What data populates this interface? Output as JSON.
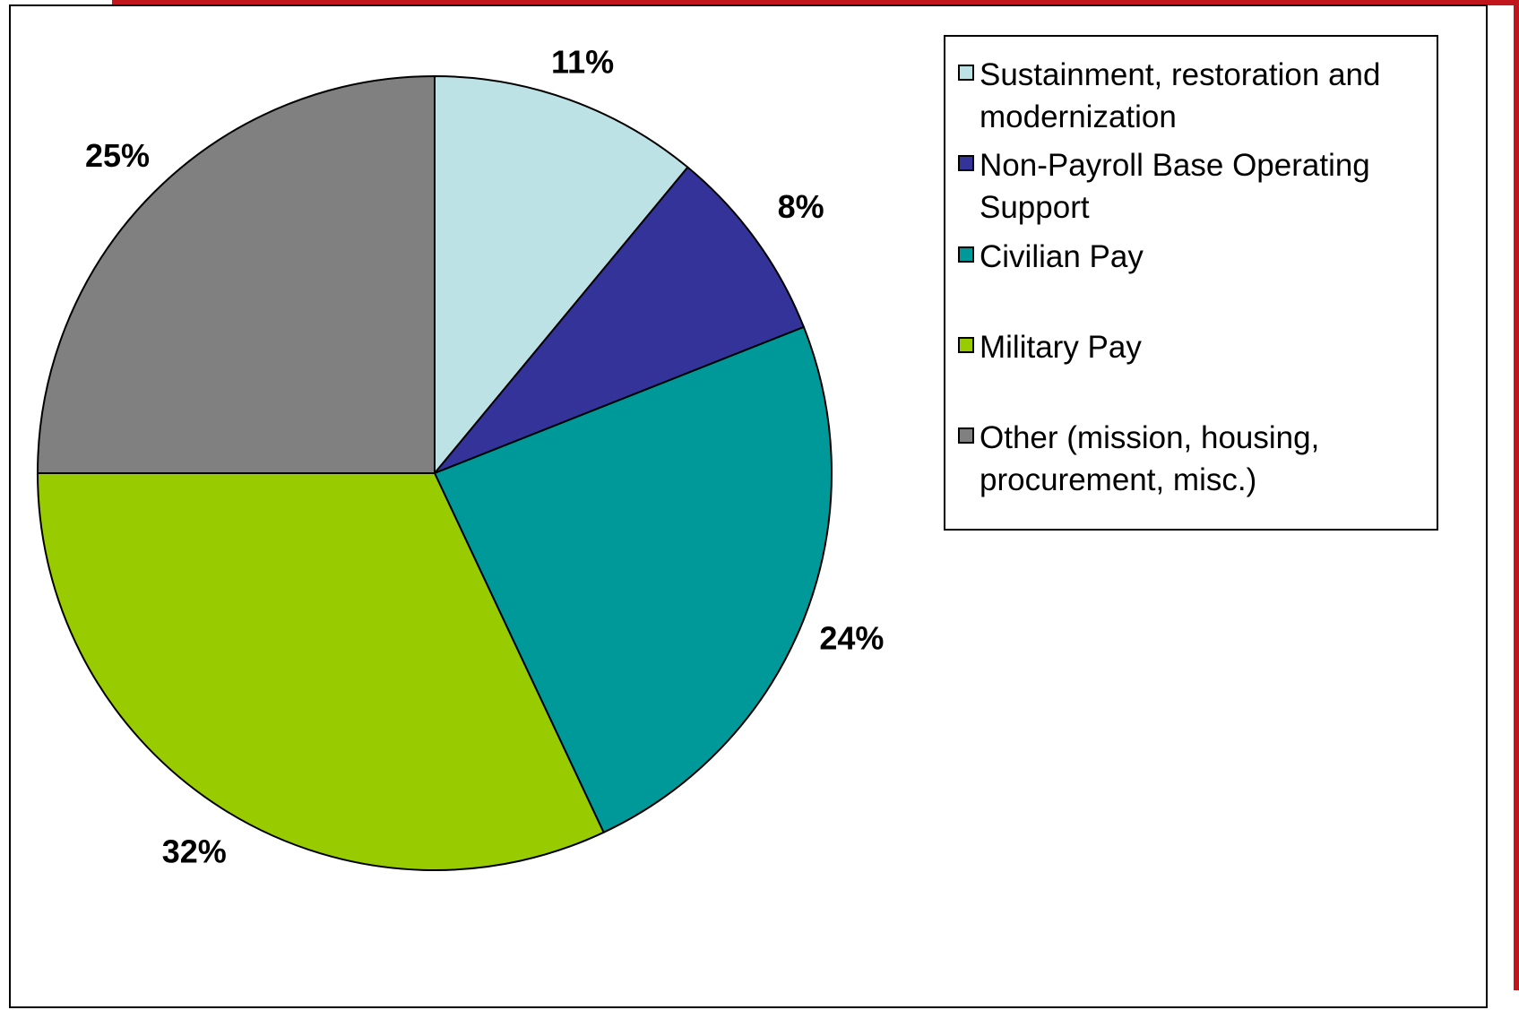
{
  "chart_data": {
    "type": "pie",
    "slices": [
      {
        "label": "Sustainment, restoration and modernization",
        "value": 11,
        "display": "11%",
        "color": "#bde2e6"
      },
      {
        "label": "Non-Payroll Base Operating Support",
        "value": 8,
        "display": "8%",
        "color": "#333399"
      },
      {
        "label": "Civilian Pay",
        "value": 24,
        "display": "24%",
        "color": "#009999"
      },
      {
        "label": "Military Pay",
        "value": 32,
        "display": "32%",
        "color": "#99cc00"
      },
      {
        "label": "Other (mission, housing, procurement, misc.)",
        "value": 25,
        "display": "25%",
        "color": "#808080"
      }
    ],
    "legend_placement": "top-right"
  },
  "legend": {
    "items": [
      {
        "label": "Sustainment, restoration and modernization"
      },
      {
        "label": "Non-Payroll Base Operating Support"
      },
      {
        "label": "Civilian Pay"
      },
      {
        "label": "Military Pay"
      },
      {
        "label": "Other (mission, housing, procurement, misc.)"
      }
    ]
  },
  "frame": {
    "accent_color": "#c0161c"
  }
}
